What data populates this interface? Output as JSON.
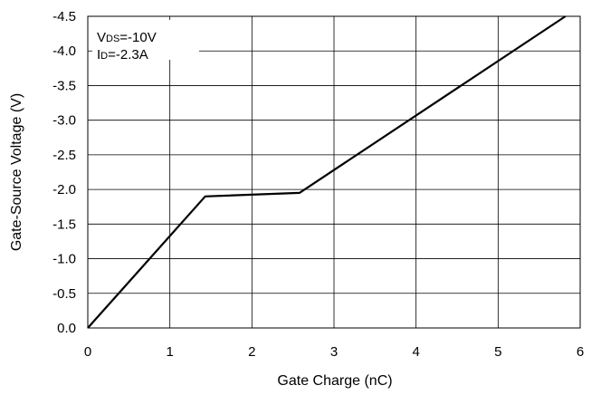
{
  "chart_data": {
    "type": "line",
    "title": "",
    "xlabel": "Gate Charge (nC)",
    "ylabel": "Gate-Source Voltage (V)",
    "xlim": [
      0,
      6
    ],
    "ylim": [
      0.0,
      -4.5
    ],
    "x_ticks": [
      "0",
      "1",
      "2",
      "3",
      "4",
      "5",
      "6"
    ],
    "y_ticks": [
      "0.0",
      "-0.5",
      "-1.0",
      "-1.5",
      "-2.0",
      "-2.5",
      "-3.0",
      "-3.5",
      "-4.0",
      "-4.5"
    ],
    "grid": true,
    "series": [
      {
        "x": [
          0,
          1.43,
          2.58,
          5.82
        ],
        "y": [
          0.0,
          -1.9,
          -1.95,
          -4.5
        ]
      }
    ],
    "annotation": {
      "vds_main": "V",
      "vds_sub": "DS",
      "vds_value": "=-10V",
      "id_main": "I",
      "id_sub": "D",
      "id_value": "=-2.3A"
    }
  }
}
